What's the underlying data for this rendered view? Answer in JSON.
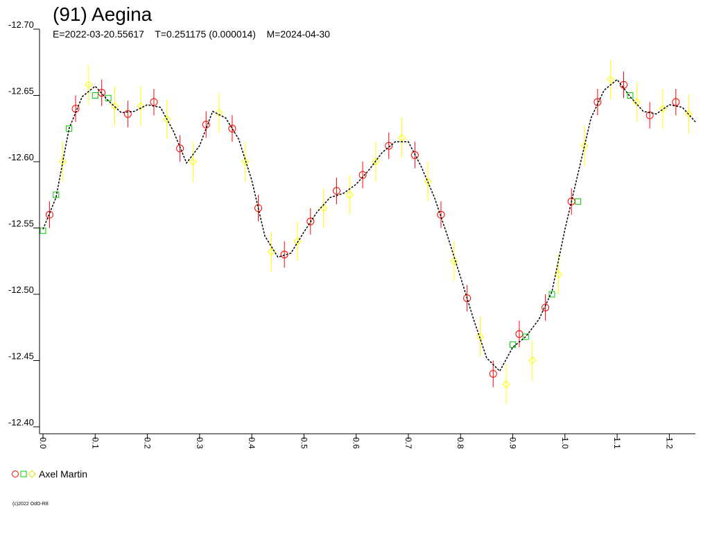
{
  "chart_data": {
    "type": "lightcurve",
    "title": "(91) Aegina",
    "subtitle": "E=2022-03-20.55617    T=0.251175 (0.000014)    M=2024-04-30",
    "observer": "Axel Martin",
    "footer": "(c)2022 OdO-R8",
    "xlim": [
      0,
      1.25
    ],
    "xticks": [
      {
        "value": 0,
        "label": "0.0"
      },
      0.1,
      0.2,
      0.3,
      0.4,
      0.5,
      0.6,
      0.7,
      0.8,
      0.9,
      {
        "value": 1,
        "label": "1.0"
      },
      1.1,
      1.2
    ],
    "ylim": [
      -12.7,
      -12.4
    ],
    "y_inverted": true,
    "yticks": [
      {
        "value": -12.7,
        "label": "-12.70"
      },
      -12.65,
      {
        "value": -12.6,
        "label": "-12.60"
      },
      -12.55,
      {
        "value": -12.5,
        "label": "-12.50"
      },
      -12.45,
      {
        "value": -12.4,
        "label": "-12.40"
      }
    ],
    "fit": {
      "color": "#000000",
      "x": [
        0,
        0.025,
        0.05,
        0.075,
        0.1,
        0.125,
        0.15,
        0.175,
        0.2,
        0.225,
        0.25,
        0.275,
        0.3,
        0.325,
        0.35,
        0.375,
        0.4,
        0.425,
        0.45,
        0.475,
        0.5,
        0.525,
        0.55,
        0.575,
        0.6,
        0.625,
        0.65,
        0.675,
        0.7,
        0.725,
        0.75,
        0.775,
        0.8,
        0.825,
        0.85,
        0.875,
        0.9,
        0.925,
        0.95,
        0.975,
        1,
        1.025,
        1.05,
        1.075,
        1.1,
        1.125,
        1.15,
        1.175,
        1.2,
        1.225,
        1.25
      ],
      "values": [
        -12.549,
        -12.573,
        -12.625,
        -12.649,
        -12.657,
        -12.646,
        -12.637,
        -12.638,
        -12.643,
        -12.641,
        -12.623,
        -12.599,
        -12.612,
        -12.638,
        -12.633,
        -12.617,
        -12.586,
        -12.544,
        -12.528,
        -12.531,
        -12.547,
        -12.562,
        -12.573,
        -12.576,
        -12.583,
        -12.594,
        -12.607,
        -12.615,
        -12.615,
        -12.596,
        -12.573,
        -12.544,
        -12.513,
        -12.481,
        -12.452,
        -12.442,
        -12.46,
        -12.468,
        -12.481,
        -12.502,
        -12.549,
        -12.591,
        -12.633,
        -12.654,
        -12.662,
        -12.649,
        -12.638,
        -12.636,
        -12.643,
        -12.641,
        -12.63
      ]
    },
    "series": [
      {
        "marker": "circle",
        "color": "#ff0000",
        "x": [
          0.0125,
          0.0625,
          0.1125,
          0.1625,
          0.2125,
          0.2625,
          0.3125,
          0.3625,
          0.4125,
          0.4625,
          0.5125,
          0.5625,
          0.6125,
          0.6625,
          0.7125,
          0.7625,
          0.8125,
          0.8625,
          0.9125,
          0.9625,
          1.0125,
          1.0625,
          1.1125,
          1.1625,
          1.2125
        ],
        "values": [
          -12.56,
          -12.64,
          -12.652,
          -12.636,
          -12.645,
          -12.61,
          -12.628,
          -12.625,
          -12.565,
          -12.53,
          -12.555,
          -12.578,
          -12.59,
          -12.612,
          -12.605,
          -12.56,
          -12.497,
          -12.44,
          -12.47,
          -12.49,
          -12.57,
          -12.645,
          -12.658,
          -12.635,
          -12.645
        ],
        "errors": [
          0.01,
          0.01,
          0.01,
          0.01,
          0.01,
          0.01,
          0.01,
          0.01,
          0.01,
          0.01,
          0.01,
          0.01,
          0.01,
          0.01,
          0.01,
          0.01,
          0.01,
          0.01,
          0.01,
          0.01,
          0.01,
          0.01,
          0.01,
          0.01,
          0.01
        ]
      },
      {
        "marker": "diamond",
        "color": "#ffff00",
        "x": [
          0.0375,
          0.0875,
          0.1375,
          0.1875,
          0.2375,
          0.2875,
          0.3375,
          0.3875,
          0.4375,
          0.4875,
          0.5375,
          0.5875,
          0.6375,
          0.6875,
          0.7375,
          0.7875,
          0.8375,
          0.8875,
          0.9375,
          0.9875,
          1.0375,
          1.0875,
          1.1375,
          1.1875,
          1.2375
        ],
        "values": [
          -12.6,
          -12.658,
          -12.642,
          -12.642,
          -12.632,
          -12.6,
          -12.637,
          -12.6,
          -12.532,
          -12.54,
          -12.565,
          -12.575,
          -12.6,
          -12.618,
          -12.585,
          -12.525,
          -12.468,
          -12.432,
          -12.45,
          -12.515,
          -12.612,
          -12.662,
          -12.645,
          -12.64,
          -12.636
        ],
        "errors": [
          0.015,
          0.015,
          0.015,
          0.015,
          0.015,
          0.015,
          0.015,
          0.015,
          0.015,
          0.015,
          0.015,
          0.015,
          0.015,
          0.015,
          0.015,
          0.015,
          0.015,
          0.015,
          0.015,
          0.015,
          0.015,
          0.015,
          0.015,
          0.015,
          0.015
        ]
      },
      {
        "marker": "square",
        "color": "#00cc00",
        "x": [
          0,
          0.025,
          0.05,
          0.1,
          0.125,
          0.9,
          0.925,
          0.975,
          1.025,
          1.125
        ],
        "values": [
          -12.548,
          -12.575,
          -12.625,
          -12.65,
          -12.648,
          -12.462,
          -12.468,
          -12.5,
          -12.57,
          -12.65
        ]
      }
    ]
  }
}
